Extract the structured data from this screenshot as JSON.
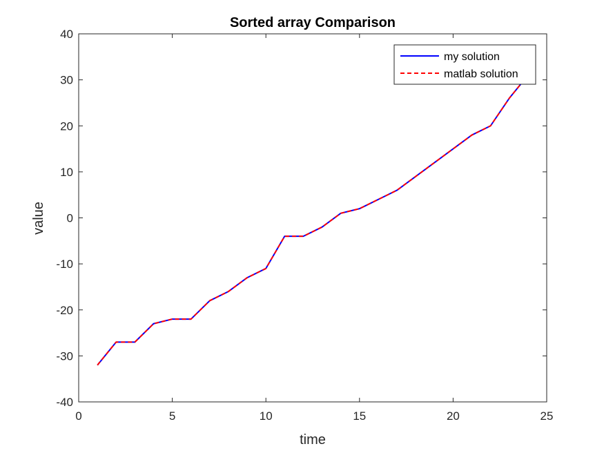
{
  "chart_data": {
    "type": "line",
    "title": "Sorted array Comparison",
    "xlabel": "time",
    "ylabel": "value",
    "xlim": [
      0,
      25
    ],
    "ylim": [
      -40,
      40
    ],
    "xticks": [
      0,
      5,
      10,
      15,
      20,
      25
    ],
    "yticks": [
      -40,
      -30,
      -20,
      -10,
      0,
      10,
      20,
      30,
      40
    ],
    "grid": false,
    "legend_position": "top-right",
    "x": [
      1,
      2,
      3,
      4,
      5,
      6,
      7,
      8,
      9,
      10,
      11,
      12,
      13,
      14,
      15,
      16,
      17,
      18,
      19,
      20,
      21,
      22,
      23,
      24
    ],
    "series": [
      {
        "name": "my solution",
        "color": "#0000ff",
        "line_style": "solid",
        "values": [
          -32,
          -27,
          -27,
          -23,
          -22,
          -22,
          -18,
          -16,
          -13,
          -11,
          -4,
          -4,
          -2,
          1,
          2,
          4,
          6,
          9,
          12,
          15,
          18,
          20,
          26,
          31
        ]
      },
      {
        "name": "matlab solution",
        "color": "#ff0000",
        "line_style": "dashed",
        "values": [
          -32,
          -27,
          -27,
          -23,
          -22,
          -22,
          -18,
          -16,
          -13,
          -11,
          -4,
          -4,
          -2,
          1,
          2,
          4,
          6,
          9,
          12,
          15,
          18,
          20,
          26,
          31
        ]
      }
    ]
  }
}
